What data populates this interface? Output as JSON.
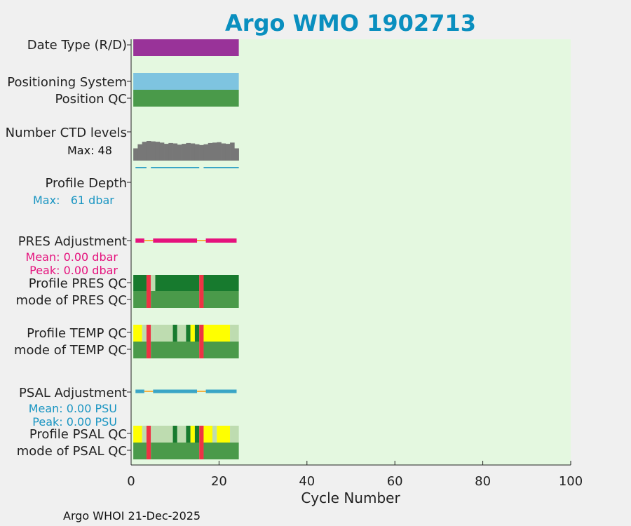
{
  "chart_data": {
    "type": "qc-timeline",
    "title": "Argo WMO 1902713",
    "footer": "Argo WHOI 21-Dec-2025",
    "xlabel": "Cycle Number",
    "xlim": [
      0,
      100
    ],
    "xticks": [
      0,
      20,
      40,
      60,
      80,
      100
    ],
    "colors": {
      "title": "#0a8fbf",
      "plot_bg": "#e4f8e0",
      "page_bg": "#f0f0f0",
      "purple": "#993399",
      "sky": "#7ec4e0",
      "green": "#4a9a4a",
      "dark_green": "#177a2e",
      "light_green": "#bedcb0",
      "yellow": "#ffff00",
      "red": "#ee3344",
      "grey": "#777777",
      "teal": "#3aa6c6",
      "magenta": "#e5127d",
      "orange": "#f5b040",
      "salmon": "#f4a8a8",
      "blue_text": "#1a95c2"
    },
    "labels": {
      "date_type": "Date Type (R/D)",
      "positioning_system": "Positioning System",
      "position_qc": "Position QC",
      "ctd_levels": "Number CTD levels",
      "ctd_max": "Max: 48",
      "profile_depth": "Profile Depth",
      "depth_max": "Max:   61 dbar",
      "pres_adjustment": "PRES Adjustment",
      "pres_mean": "Mean: 0.00 dbar",
      "pres_peak": "Peak: 0.00 dbar",
      "profile_pres_qc": "Profile PRES QC",
      "mode_pres_qc": "mode of PRES QC",
      "profile_temp_qc": "Profile TEMP QC",
      "mode_temp_qc": "mode of TEMP QC",
      "psal_adjustment": "PSAL Adjustment",
      "psal_mean": "Mean: 0.00 PSU",
      "psal_peak": "Peak: 0.00 PSU",
      "profile_psal_qc": "Profile PSAL QC",
      "mode_psal_qc": "mode of PSAL QC"
    },
    "rows": {
      "date_type": [
        {
          "from": 0.5,
          "to": 24.5,
          "color": "purple"
        }
      ],
      "positioning_system": [
        {
          "from": 0.5,
          "to": 24.5,
          "color": "sky"
        }
      ],
      "position_qc": [
        {
          "from": 0.5,
          "to": 24.5,
          "color": "green"
        }
      ],
      "profile_pres_qc": [
        {
          "from": 0.5,
          "to": 3.5,
          "color": "dark_green"
        },
        {
          "from": 3.5,
          "to": 4.5,
          "color": "red"
        },
        {
          "from": 4.5,
          "to": 5.5,
          "color": "light_green"
        },
        {
          "from": 5.5,
          "to": 15.5,
          "color": "dark_green"
        },
        {
          "from": 15.5,
          "to": 16.5,
          "color": "red"
        },
        {
          "from": 16.5,
          "to": 24.5,
          "color": "dark_green"
        }
      ],
      "mode_pres_qc": [
        {
          "from": 0.5,
          "to": 3.5,
          "color": "green"
        },
        {
          "from": 3.5,
          "to": 4.5,
          "color": "red"
        },
        {
          "from": 4.5,
          "to": 15.5,
          "color": "green"
        },
        {
          "from": 15.5,
          "to": 16.5,
          "color": "red"
        },
        {
          "from": 16.5,
          "to": 24.5,
          "color": "green"
        }
      ],
      "profile_temp_qc": [
        {
          "from": 0.5,
          "to": 2.5,
          "color": "yellow"
        },
        {
          "from": 2.5,
          "to": 3.5,
          "color": "light_green"
        },
        {
          "from": 3.5,
          "to": 4.5,
          "color": "red"
        },
        {
          "from": 4.5,
          "to": 5.0,
          "color": "light_green"
        },
        {
          "from": 5.0,
          "to": 9.5,
          "color": "light_green"
        },
        {
          "from": 9.5,
          "to": 10.5,
          "color": "dark_green"
        },
        {
          "from": 10.5,
          "to": 12.5,
          "color": "light_green"
        },
        {
          "from": 12.5,
          "to": 13.5,
          "color": "dark_green"
        },
        {
          "from": 13.5,
          "to": 14.5,
          "color": "yellow"
        },
        {
          "from": 14.5,
          "to": 15.5,
          "color": "dark_green"
        },
        {
          "from": 15.5,
          "to": 16.5,
          "color": "red"
        },
        {
          "from": 16.5,
          "to": 22.5,
          "color": "yellow"
        },
        {
          "from": 22.5,
          "to": 24.5,
          "color": "light_green"
        }
      ],
      "mode_temp_qc": [
        {
          "from": 0.5,
          "to": 3.5,
          "color": "green"
        },
        {
          "from": 3.5,
          "to": 4.5,
          "color": "red"
        },
        {
          "from": 4.5,
          "to": 15.5,
          "color": "green"
        },
        {
          "from": 15.5,
          "to": 16.5,
          "color": "red"
        },
        {
          "from": 16.5,
          "to": 24.5,
          "color": "green"
        }
      ],
      "profile_psal_qc": [
        {
          "from": 0.5,
          "to": 2.5,
          "color": "yellow"
        },
        {
          "from": 2.5,
          "to": 3.5,
          "color": "light_green"
        },
        {
          "from": 3.5,
          "to": 4.5,
          "color": "red"
        },
        {
          "from": 4.5,
          "to": 9.5,
          "color": "light_green"
        },
        {
          "from": 9.5,
          "to": 10.5,
          "color": "dark_green"
        },
        {
          "from": 10.5,
          "to": 12.5,
          "color": "light_green"
        },
        {
          "from": 12.5,
          "to": 13.5,
          "color": "dark_green"
        },
        {
          "from": 13.5,
          "to": 14.5,
          "color": "yellow"
        },
        {
          "from": 14.5,
          "to": 15.5,
          "color": "dark_green"
        },
        {
          "from": 15.5,
          "to": 16.5,
          "color": "red"
        },
        {
          "from": 16.5,
          "to": 18.5,
          "color": "yellow"
        },
        {
          "from": 18.5,
          "to": 19.5,
          "color": "light_green"
        },
        {
          "from": 19.5,
          "to": 22.5,
          "color": "yellow"
        },
        {
          "from": 22.5,
          "to": 24.5,
          "color": "light_green"
        }
      ],
      "mode_psal_qc": [
        {
          "from": 0.5,
          "to": 3.5,
          "color": "green"
        },
        {
          "from": 3.5,
          "to": 4.5,
          "color": "red"
        },
        {
          "from": 4.5,
          "to": 15.5,
          "color": "green"
        },
        {
          "from": 15.5,
          "to": 16.5,
          "color": "red"
        },
        {
          "from": 16.5,
          "to": 24.5,
          "color": "green"
        }
      ],
      "pres_adjustment_line": [
        {
          "from": 1,
          "to": 3,
          "color": "magenta"
        },
        {
          "from": 3,
          "to": 5,
          "color": "orange"
        },
        {
          "from": 5,
          "to": 15,
          "color": "magenta"
        },
        {
          "from": 15,
          "to": 17,
          "color": "orange"
        },
        {
          "from": 17,
          "to": 24,
          "color": "magenta"
        }
      ],
      "psal_adjustment_line": [
        {
          "from": 1,
          "to": 3,
          "color": "teal"
        },
        {
          "from": 3,
          "to": 5,
          "color": "orange"
        },
        {
          "from": 5,
          "to": 15,
          "color": "teal"
        },
        {
          "from": 15,
          "to": 17,
          "color": "orange"
        },
        {
          "from": 17,
          "to": 24,
          "color": "teal"
        }
      ],
      "depth_dashes": [
        {
          "from": 1,
          "to": 3.5
        },
        {
          "from": 4.5,
          "to": 15.5
        },
        {
          "from": 16.5,
          "to": 24.5
        }
      ]
    },
    "ctd_levels": {
      "cycles": [
        1,
        2,
        3,
        4,
        5,
        6,
        7,
        8,
        9,
        10,
        11,
        12,
        13,
        14,
        15,
        16,
        17,
        18,
        19,
        20,
        21,
        22,
        23,
        24
      ],
      "values": [
        30,
        40,
        46,
        48,
        47,
        46,
        44,
        41,
        43,
        42,
        39,
        41,
        43,
        42,
        40,
        38,
        40,
        43,
        44,
        45,
        42,
        41,
        44,
        30
      ],
      "max": 48
    }
  }
}
